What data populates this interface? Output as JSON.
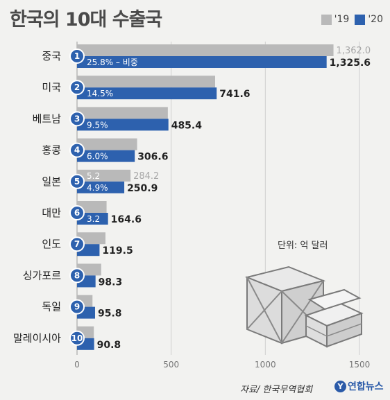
{
  "title": "한국의 10대 수출국",
  "legend": [
    {
      "label": "'19",
      "color": "#b9b9b9"
    },
    {
      "label": "'20",
      "color": "#2d61ae"
    }
  ],
  "unit_text": "단위: 억 달러",
  "source": "자료/ 한국무역협회",
  "logo": "연합뉴스",
  "chart_data": {
    "type": "bar",
    "orientation": "horizontal",
    "categories": [
      "중국",
      "미국",
      "베트남",
      "홍콩",
      "일본",
      "대만",
      "인도",
      "싱가포르",
      "독일",
      "말레이시아"
    ],
    "ranks": [
      "1",
      "2",
      "3",
      "4",
      "5",
      "6",
      "7",
      "8",
      "9",
      "10"
    ],
    "series": [
      {
        "name": "'19",
        "color": "#b9b9b9",
        "values": [
          1362.0,
          733.4,
          482.3,
          319.1,
          284.2,
          156.9,
          151.0,
          128.3,
          82.1,
          89.2
        ]
      },
      {
        "name": "'20",
        "color": "#2d61ae",
        "values": [
          1325.6,
          741.6,
          485.4,
          306.6,
          250.9,
          164.6,
          119.5,
          98.3,
          95.8,
          90.8
        ]
      }
    ],
    "value_labels_19": [
      "1,362.0",
      "",
      "",
      "",
      "284.2",
      "",
      "",
      "",
      "",
      ""
    ],
    "value_labels_20": [
      "1,325.6",
      "741.6",
      "485.4",
      "306.6",
      "250.9",
      "164.6",
      "119.5",
      "98.3",
      "95.8",
      "90.8"
    ],
    "share_labels_19": [
      "",
      "",
      "",
      "",
      "5.2",
      "",
      "",
      "",
      "",
      ""
    ],
    "share_labels_20": [
      "25.8% – 비중",
      "14.5%",
      "9.5%",
      "6.0%",
      "4.9%",
      "3.2",
      "",
      "",
      "",
      ""
    ],
    "xticks": [
      0,
      500,
      1000,
      1500
    ],
    "xtick_labels": [
      "0",
      "500",
      "1000",
      "1500"
    ],
    "xlim": [
      0,
      1500
    ],
    "grid": true
  }
}
